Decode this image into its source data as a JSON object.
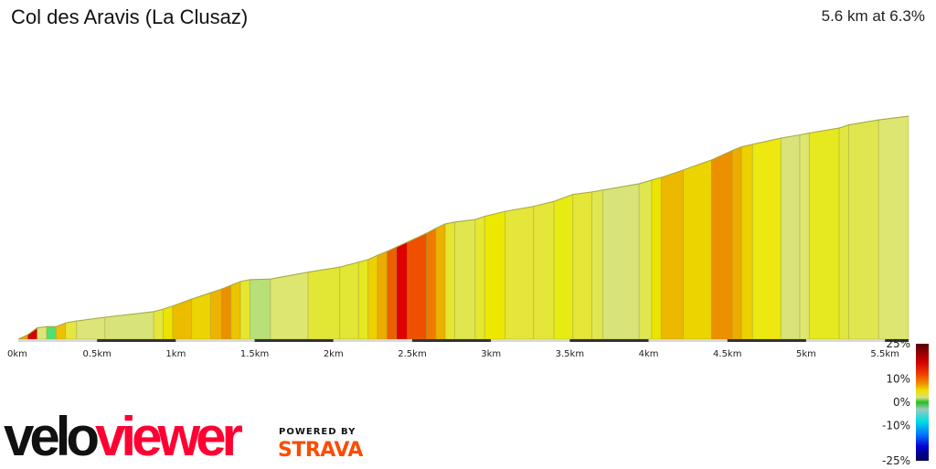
{
  "header": {
    "title": "Col des Aravis (La Clusaz)",
    "summary": "5.6 km at 6.3%"
  },
  "chart_data": {
    "type": "area",
    "title": "Col des Aravis (La Clusaz)",
    "xlabel": "",
    "ylabel": "",
    "xlim": [
      0,
      5.65
    ],
    "x_ticks": [
      "0km",
      "0.5km",
      "1km",
      "1.5km",
      "2km",
      "2.5km",
      "3km",
      "3.5km",
      "4km",
      "4.5km",
      "5km",
      "5.5km"
    ],
    "x_tick_values": [
      0,
      0.5,
      1,
      1.5,
      2,
      2.5,
      3,
      3.5,
      4,
      4.5,
      5,
      5.5
    ],
    "profile_km": [
      0,
      0.06,
      0.12,
      0.18,
      0.24,
      0.3,
      0.37,
      0.55,
      0.86,
      0.92,
      0.98,
      1.1,
      1.22,
      1.29,
      1.35,
      1.41,
      1.47,
      1.6,
      1.84,
      2.04,
      2.16,
      2.22,
      2.28,
      2.34,
      2.4,
      2.47,
      2.59,
      2.65,
      2.71,
      2.77,
      2.9,
      2.96,
      3.09,
      3.27,
      3.4,
      3.52,
      3.64,
      3.71,
      3.94,
      4.02,
      4.08,
      4.22,
      4.4,
      4.53,
      4.59,
      4.66,
      4.84,
      4.96,
      5.02,
      5.21,
      5.27,
      5.46,
      5.65
    ],
    "profile_elev_gain_m": [
      0,
      7,
      18,
      20,
      20,
      26,
      29,
      35,
      44,
      48,
      53,
      64,
      74,
      80,
      86,
      92,
      95,
      96,
      107,
      115,
      123,
      127,
      134,
      140,
      147,
      155,
      169,
      177,
      184,
      187,
      191,
      196,
      204,
      212,
      220,
      231,
      235,
      238,
      248,
      254,
      258,
      270,
      286,
      301,
      307,
      311,
      321,
      326,
      329,
      337,
      342,
      350,
      356
    ],
    "segment_colors": [
      "#eea010",
      "#d80000",
      "#dce678",
      "#50e070",
      "#eec000",
      "#e6e640",
      "#dbe578",
      "#d8e47a",
      "#e4e63c",
      "#ece400",
      "#ecbc00",
      "#ecd400",
      "#ecb400",
      "#ec9000",
      "#ecc400",
      "#e6e630",
      "#b8e078",
      "#dce670",
      "#e2e634",
      "#e2e634",
      "#e6e820",
      "#eed000",
      "#ecac00",
      "#ec6000",
      "#e00000",
      "#ee5000",
      "#ee7a00",
      "#ecb000",
      "#e6e630",
      "#e0e64e",
      "#e6e830",
      "#ece800",
      "#e4e63a",
      "#e4e63a",
      "#e8ea14",
      "#e4e63a",
      "#e0e650",
      "#d8e47a",
      "#e0e650",
      "#ece400",
      "#ecb800",
      "#ecd400",
      "#ec9000",
      "#ecac00",
      "#ecd000",
      "#ece810",
      "#d8e47a",
      "#dce670",
      "#e6e820",
      "#e2e640",
      "#e0e650",
      "#dce670"
    ],
    "legend": {
      "labels": [
        "25%",
        "10%",
        "0%",
        "-10%",
        "-25%"
      ],
      "values": [
        25,
        10,
        0,
        -10,
        -25
      ],
      "placement": "bottom-right",
      "colors": [
        [
          "25",
          "#5a0000"
        ],
        [
          "17",
          "#d40000"
        ],
        [
          "12",
          "#f04000"
        ],
        [
          "8",
          "#f09000"
        ],
        [
          "5",
          "#eee000"
        ],
        [
          "2",
          "#d8e080"
        ],
        [
          "0",
          "#20c020"
        ],
        [
          "-3",
          "#a0c8c0"
        ],
        [
          "-8",
          "#00e0e0"
        ],
        [
          "-14",
          "#0070ff"
        ],
        [
          "-19",
          "#0000d0"
        ],
        [
          "-25",
          "#000050"
        ]
      ]
    }
  },
  "branding": {
    "velo": "velo",
    "viewer": "viewer",
    "powered_by": "POWERED BY",
    "strava": "STRAVA"
  }
}
